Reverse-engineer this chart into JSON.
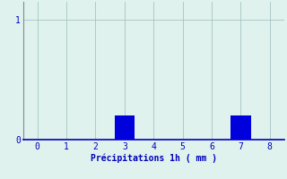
{
  "x_values": [
    0,
    1,
    2,
    3,
    4,
    5,
    6,
    7,
    8
  ],
  "bar_heights": [
    0,
    0,
    0,
    0.2,
    0,
    0,
    0,
    0.2,
    0
  ],
  "bar_color": "#0000dd",
  "bar_width": 0.7,
  "xlabel": "Précipitations 1h ( mm )",
  "xlim": [
    -0.5,
    8.5
  ],
  "ylim": [
    0,
    1.15
  ],
  "yticks": [
    0,
    1
  ],
  "xticks": [
    0,
    1,
    2,
    3,
    4,
    5,
    6,
    7,
    8
  ],
  "background_color": "#dff2ee",
  "axis_color": "#0000bb",
  "grid_color": "#99bbbb",
  "xlabel_fontsize": 7,
  "tick_fontsize": 7,
  "spine_color": "#888888",
  "spine_bottom_color": "#0000bb"
}
